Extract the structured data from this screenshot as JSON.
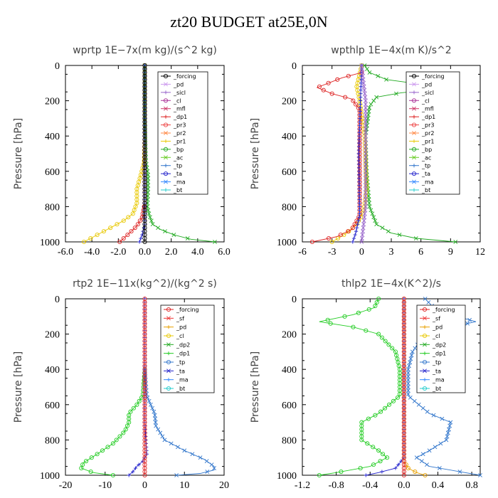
{
  "title": "zt20  BUDGET at25E,0N",
  "chart_data": [
    {
      "type": "line",
      "title": "wprtp   1E−7x(m kg)/(s^2 kg)",
      "ylabel": "Pressure  [hPa]",
      "xlim": [
        -6,
        6
      ],
      "ylim": [
        1000,
        0
      ],
      "xticks": [
        -6,
        -4,
        -2,
        0,
        2,
        4,
        6
      ],
      "xtick_labels": [
        "-6.0",
        "-4.0",
        "-2.0",
        "0.0",
        "2.0",
        "4.0",
        "6.0"
      ],
      "yticks": [
        0,
        200,
        400,
        600,
        800,
        1000
      ],
      "ytick_labels": [
        "0",
        "200",
        "400",
        "600",
        "800",
        "1000"
      ],
      "legend": [
        "_forcing",
        "_pd",
        "_sicl",
        "_cl",
        "_mfl",
        "_dp1",
        "_pr3",
        "_pr2",
        "_pr1",
        "_bp",
        "_ac",
        "_tp",
        "_ta",
        "_ma",
        "_bt"
      ],
      "series": [
        {
          "name": "_bp",
          "color": "#22aa22",
          "marker": "x",
          "x": [
            0,
            0,
            0.05,
            0.1,
            0.25,
            0.25,
            0.2,
            0.35,
            0.6,
            1.2,
            2.2,
            3.5,
            5.3
          ],
          "y": [
            0,
            300,
            450,
            550,
            620,
            700,
            800,
            850,
            900,
            930,
            960,
            985,
            1000
          ]
        },
        {
          "name": "_pr1",
          "color": "#e8c800",
          "marker": "o",
          "x": [
            0,
            0,
            -0.05,
            -0.3,
            -0.6,
            -0.6,
            -0.9,
            -1.6,
            -2.6,
            -3.6,
            -4.6
          ],
          "y": [
            0,
            400,
            550,
            620,
            700,
            780,
            840,
            880,
            920,
            960,
            1000
          ]
        },
        {
          "name": "_dp1",
          "color": "#dd2222",
          "marker": "o",
          "x": [
            0,
            0,
            -0.2,
            -0.6,
            -1.3,
            -1.9
          ],
          "y": [
            0,
            780,
            860,
            910,
            960,
            1000
          ]
        },
        {
          "name": "_ta",
          "color": "#2222cc",
          "marker": "+",
          "x": [
            0,
            0,
            -0.2,
            -0.4
          ],
          "y": [
            0,
            900,
            960,
            1000
          ]
        },
        {
          "name": "_forcing",
          "color": "#000000",
          "marker": "o",
          "x": [
            0,
            0
          ],
          "y": [
            0,
            1000
          ]
        }
      ]
    },
    {
      "type": "line",
      "title": "wpthlp   1E−4x(m K)/s^2",
      "ylabel": "Pressure  [hPa]",
      "xlim": [
        -6,
        12
      ],
      "ylim": [
        1000,
        0
      ],
      "xticks": [
        -6,
        -3,
        0,
        3,
        6,
        9,
        12
      ],
      "xtick_labels": [
        "-6",
        "-3",
        "0",
        "3",
        "6",
        "9",
        "12"
      ],
      "yticks": [
        0,
        200,
        400,
        600,
        800,
        1000
      ],
      "ytick_labels": [
        "0",
        "200",
        "400",
        "600",
        "800",
        "1000"
      ],
      "legend": [
        "_forcing",
        "_pd",
        "_sicl",
        "_cl",
        "_mfl",
        "_dp1",
        "_pr3",
        "_pr2",
        "_pr1",
        "_bp",
        "_ac",
        "_tp",
        "_ta",
        "_ma",
        "_bt"
      ],
      "series": [
        {
          "name": "_bp",
          "color": "#22aa22",
          "marker": "x",
          "x": [
            0.3,
            0.8,
            2.5,
            6.5,
            8.5,
            4,
            1.5,
            0.8,
            0.4,
            0.5,
            0.8,
            1.5,
            3,
            5.5,
            9.5
          ],
          "y": [
            0,
            40,
            80,
            110,
            130,
            155,
            180,
            230,
            400,
            600,
            800,
            900,
            950,
            980,
            1000
          ]
        },
        {
          "name": "_pr1",
          "color": "#e8c800",
          "marker": "o",
          "x": [
            0,
            -0.5,
            -0.2,
            0.3,
            0.5,
            0.2,
            -0.5,
            -1.5,
            -3
          ],
          "y": [
            0,
            120,
            200,
            400,
            700,
            830,
            900,
            950,
            1000
          ]
        },
        {
          "name": "_dp1",
          "color": "#dd2222",
          "marker": "o",
          "x": [
            0,
            -2,
            -4.5,
            -3,
            -1,
            -0.2,
            -0.2,
            -1,
            -2.5,
            -5
          ],
          "y": [
            40,
            70,
            125,
            160,
            190,
            250,
            850,
            930,
            970,
            1000
          ]
        },
        {
          "name": "_ta",
          "color": "#2222cc",
          "marker": "+",
          "x": [
            0,
            -0.3,
            -0.2,
            -0.6,
            -0.9
          ],
          "y": [
            0,
            500,
            850,
            950,
            1000
          ]
        },
        {
          "name": "_sicl",
          "color": "#9966cc",
          "marker": "x",
          "x": [
            0,
            0.4,
            0.4,
            0
          ],
          "y": [
            0,
            200,
            800,
            1000
          ]
        }
      ]
    },
    {
      "type": "line",
      "title": "rtp2   1E−11x(kg^2)/(kg^2 s)",
      "ylabel": "Pressure  [hPa]",
      "xlim": [
        -20,
        20
      ],
      "ylim": [
        1000,
        0
      ],
      "xticks": [
        -20,
        -10,
        0,
        10,
        20
      ],
      "xtick_labels": [
        "-20",
        "-10",
        "0",
        "10",
        "20"
      ],
      "yticks": [
        0,
        200,
        400,
        600,
        800,
        1000
      ],
      "ytick_labels": [
        "0",
        "200",
        "400",
        "600",
        "800",
        "1000"
      ],
      "legend": [
        "_forcing",
        "_sf",
        "_pd",
        "_cl",
        "_dp2",
        "_dp1",
        "_tp",
        "_ta",
        "_ma",
        "_bt"
      ],
      "series": [
        {
          "name": "_dp1",
          "color": "#22cc22",
          "marker": "o",
          "x": [
            0,
            -0.5,
            -2,
            -4,
            -4,
            -5,
            -8,
            -12,
            -15.5,
            -16,
            -13,
            -8
          ],
          "y": [
            400,
            550,
            600,
            650,
            700,
            750,
            820,
            880,
            930,
            960,
            985,
            1000
          ]
        },
        {
          "name": "_tp",
          "color": "#3377cc",
          "marker": "x",
          "x": [
            0,
            0.5,
            1.5,
            2.5,
            2.8,
            5,
            10,
            15,
            17.5,
            17.5,
            14,
            8
          ],
          "y": [
            400,
            550,
            600,
            650,
            720,
            800,
            860,
            910,
            950,
            970,
            990,
            1000
          ]
        },
        {
          "name": "_ta",
          "color": "#2222cc",
          "marker": "+",
          "x": [
            0,
            0,
            0.5,
            -0.5,
            -2,
            -3,
            -4
          ],
          "y": [
            0,
            700,
            880,
            920,
            950,
            980,
            1000
          ]
        },
        {
          "name": "_forcing",
          "color": "#dd2222",
          "marker": "o",
          "x": [
            0,
            0
          ],
          "y": [
            0,
            1000
          ]
        }
      ]
    },
    {
      "type": "line",
      "title": "thlp2   1E−4x(K^2)/s",
      "ylabel": "Pressure  [hPa]",
      "xlim": [
        -1.2,
        0.9
      ],
      "ylim": [
        1000,
        0
      ],
      "xticks": [
        -1.2,
        -0.8,
        -0.4,
        0,
        0.4,
        0.8
      ],
      "xtick_labels": [
        "-1.2",
        "-0.8",
        "-0.4",
        "0.0",
        "0.4",
        "0.8"
      ],
      "yticks": [
        0,
        200,
        400,
        600,
        800,
        1000
      ],
      "ytick_labels": [
        "0",
        "200",
        "400",
        "600",
        "800",
        "1000"
      ],
      "legend": [
        "_forcing",
        "_sf",
        "_pd",
        "_cl",
        "_dp2",
        "_dp1",
        "_tp",
        "_ta",
        "_ma",
        "_bt"
      ],
      "series": [
        {
          "name": "_dp1",
          "color": "#22cc22",
          "marker": "o",
          "x": [
            -0.3,
            -0.35,
            -0.6,
            -1.0,
            -0.6,
            -0.3,
            -0.1,
            -0.05,
            -0.05,
            -0.3,
            -0.5,
            -0.5,
            -0.3,
            -0.2,
            -0.4,
            -0.8,
            -1.0
          ],
          "y": [
            0,
            50,
            90,
            130,
            160,
            200,
            300,
            400,
            550,
            650,
            700,
            800,
            860,
            900,
            950,
            985,
            1000
          ]
        },
        {
          "name": "_tp",
          "color": "#3377cc",
          "marker": "x",
          "x": [
            0.25,
            0.35,
            0.55,
            0.85,
            0.55,
            0.25,
            0.1,
            0.05,
            0.05,
            0.3,
            0.55,
            0.5,
            0.3,
            0.15,
            0.3,
            0.9
          ],
          "y": [
            0,
            50,
            90,
            130,
            160,
            200,
            300,
            400,
            550,
            650,
            700,
            800,
            860,
            900,
            950,
            1000
          ]
        },
        {
          "name": "_ta",
          "color": "#2222cc",
          "marker": "+",
          "x": [
            0,
            0,
            -0.1,
            -0.3,
            -0.45
          ],
          "y": [
            0,
            900,
            960,
            985,
            1000
          ]
        },
        {
          "name": "_pd",
          "color": "#e8a000",
          "marker": "o",
          "x": [
            0,
            0,
            0.05,
            0.15,
            0.25
          ],
          "y": [
            0,
            920,
            960,
            985,
            1000
          ]
        },
        {
          "name": "_forcing",
          "color": "#dd2222",
          "marker": "o",
          "x": [
            0,
            0
          ],
          "y": [
            0,
            1000
          ]
        }
      ]
    }
  ]
}
